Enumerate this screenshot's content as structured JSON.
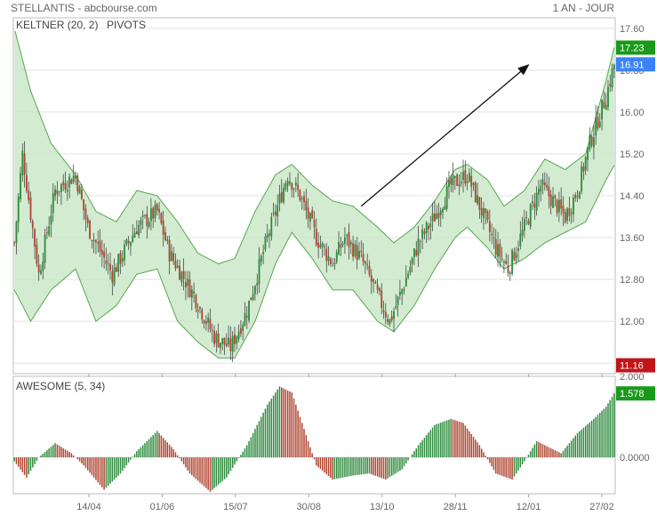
{
  "header": {
    "title": "STELLANTIS - abcbourse.com",
    "period": "1 AN - JOUR"
  },
  "colors": {
    "up": "#2e8b3e",
    "down": "#b0442f",
    "band_fill": "#cbe8c8",
    "band_line": "#55a84f",
    "badge_green": "#1a9a1a",
    "badge_blue": "#3b82f6",
    "badge_red": "#c0161a"
  },
  "chart_data": [
    {
      "type": "candlestick",
      "title": "",
      "indicators": [
        "KELTNER (20, 2)",
        "PIVOTS"
      ],
      "ylim": [
        11.0,
        17.8
      ],
      "yticks": [
        "17.60",
        "16.80",
        "16.00",
        "15.20",
        "14.40",
        "13.60",
        "12.80",
        "12.00",
        "11.20"
      ],
      "x_ticks": [
        "14/04",
        "01/06",
        "15/07",
        "30/08",
        "13/10",
        "28/11",
        "12/01",
        "27/02"
      ],
      "grid": true,
      "price_anchors": [
        {
          "x": 0,
          "close": 13.5
        },
        {
          "x": 4,
          "close": 15.2
        },
        {
          "x": 12,
          "close": 12.9
        },
        {
          "x": 20,
          "close": 14.5
        },
        {
          "x": 30,
          "close": 14.8
        },
        {
          "x": 36,
          "close": 13.8
        },
        {
          "x": 48,
          "close": 12.9
        },
        {
          "x": 60,
          "close": 13.8
        },
        {
          "x": 70,
          "close": 14.1
        },
        {
          "x": 76,
          "close": 13.3
        },
        {
          "x": 88,
          "close": 12.5
        },
        {
          "x": 98,
          "close": 11.7
        },
        {
          "x": 106,
          "close": 11.5
        },
        {
          "x": 114,
          "close": 12.2
        },
        {
          "x": 124,
          "close": 13.6
        },
        {
          "x": 134,
          "close": 14.8
        },
        {
          "x": 140,
          "close": 14.4
        },
        {
          "x": 148,
          "close": 13.6
        },
        {
          "x": 156,
          "close": 13.1
        },
        {
          "x": 162,
          "close": 13.6
        },
        {
          "x": 170,
          "close": 13.2
        },
        {
          "x": 178,
          "close": 12.5
        },
        {
          "x": 184,
          "close": 12.0
        },
        {
          "x": 190,
          "close": 12.6
        },
        {
          "x": 198,
          "close": 13.5
        },
        {
          "x": 206,
          "close": 14.0
        },
        {
          "x": 214,
          "close": 14.6
        },
        {
          "x": 222,
          "close": 14.8
        },
        {
          "x": 228,
          "close": 14.2
        },
        {
          "x": 236,
          "close": 13.4
        },
        {
          "x": 242,
          "close": 13.0
        },
        {
          "x": 250,
          "close": 13.8
        },
        {
          "x": 258,
          "close": 14.6
        },
        {
          "x": 264,
          "close": 14.3
        },
        {
          "x": 270,
          "close": 14.0
        },
        {
          "x": 276,
          "close": 14.5
        },
        {
          "x": 282,
          "close": 15.4
        },
        {
          "x": 290,
          "close": 16.3
        },
        {
          "x": 294,
          "close": 16.91
        }
      ],
      "keltner_anchors": [
        {
          "x": 0,
          "upper": 17.6,
          "lower": 12.6
        },
        {
          "x": 8,
          "upper": 16.4,
          "lower": 12.0
        },
        {
          "x": 18,
          "upper": 15.4,
          "lower": 12.6
        },
        {
          "x": 30,
          "upper": 14.8,
          "lower": 13.0
        },
        {
          "x": 40,
          "upper": 14.1,
          "lower": 12.0
        },
        {
          "x": 50,
          "upper": 13.9,
          "lower": 12.3
        },
        {
          "x": 60,
          "upper": 14.5,
          "lower": 12.9
        },
        {
          "x": 70,
          "upper": 14.4,
          "lower": 13.0
        },
        {
          "x": 80,
          "upper": 13.9,
          "lower": 12.0
        },
        {
          "x": 90,
          "upper": 13.3,
          "lower": 11.6
        },
        {
          "x": 100,
          "upper": 13.1,
          "lower": 11.3
        },
        {
          "x": 108,
          "upper": 13.2,
          "lower": 11.3
        },
        {
          "x": 118,
          "upper": 14.1,
          "lower": 12.0
        },
        {
          "x": 128,
          "upper": 14.8,
          "lower": 13.1
        },
        {
          "x": 136,
          "upper": 15.0,
          "lower": 13.7
        },
        {
          "x": 146,
          "upper": 14.6,
          "lower": 13.2
        },
        {
          "x": 156,
          "upper": 14.3,
          "lower": 12.6
        },
        {
          "x": 166,
          "upper": 14.2,
          "lower": 12.6
        },
        {
          "x": 178,
          "upper": 13.8,
          "lower": 12.0
        },
        {
          "x": 186,
          "upper": 13.5,
          "lower": 11.8
        },
        {
          "x": 196,
          "upper": 13.8,
          "lower": 12.3
        },
        {
          "x": 206,
          "upper": 14.3,
          "lower": 13.0
        },
        {
          "x": 216,
          "upper": 14.9,
          "lower": 13.6
        },
        {
          "x": 222,
          "upper": 15.0,
          "lower": 13.8
        },
        {
          "x": 232,
          "upper": 14.7,
          "lower": 13.4
        },
        {
          "x": 240,
          "upper": 14.2,
          "lower": 13.0
        },
        {
          "x": 250,
          "upper": 14.5,
          "lower": 13.2
        },
        {
          "x": 260,
          "upper": 15.1,
          "lower": 13.5
        },
        {
          "x": 270,
          "upper": 14.9,
          "lower": 13.7
        },
        {
          "x": 280,
          "upper": 15.2,
          "lower": 13.9
        },
        {
          "x": 290,
          "upper": 16.6,
          "lower": 14.7
        },
        {
          "x": 294,
          "upper": 17.23,
          "lower": 14.98
        }
      ],
      "trend_arrow": {
        "from": {
          "x": 170,
          "y": 14.2
        },
        "to": {
          "x": 252,
          "y": 16.9
        }
      },
      "last_values": [
        {
          "label": "17.23",
          "color_key": "badge_green",
          "value": 17.23
        },
        {
          "label": "16.91",
          "color_key": "badge_blue",
          "value": 16.91
        },
        {
          "label": "11.16",
          "color_key": "badge_red",
          "value": 11.16
        }
      ]
    },
    {
      "type": "bar",
      "title": "",
      "indicator": "AWESOME (5, 34)",
      "ylim": [
        -0.9,
        2.0
      ],
      "yticks": [
        "2.000",
        "0.0000"
      ],
      "last_value": "1.578",
      "ao_anchors": [
        {
          "x": 0,
          "v": -0.1
        },
        {
          "x": 6,
          "v": -0.5
        },
        {
          "x": 12,
          "v": 0.0
        },
        {
          "x": 20,
          "v": 0.35
        },
        {
          "x": 28,
          "v": 0.1
        },
        {
          "x": 34,
          "v": -0.2
        },
        {
          "x": 44,
          "v": -0.8
        },
        {
          "x": 52,
          "v": -0.4
        },
        {
          "x": 60,
          "v": 0.15
        },
        {
          "x": 70,
          "v": 0.65
        },
        {
          "x": 78,
          "v": 0.2
        },
        {
          "x": 86,
          "v": -0.4
        },
        {
          "x": 96,
          "v": -0.85
        },
        {
          "x": 104,
          "v": -0.5
        },
        {
          "x": 114,
          "v": 0.3
        },
        {
          "x": 124,
          "v": 1.3
        },
        {
          "x": 130,
          "v": 1.75
        },
        {
          "x": 136,
          "v": 1.6
        },
        {
          "x": 142,
          "v": 0.7
        },
        {
          "x": 148,
          "v": -0.2
        },
        {
          "x": 156,
          "v": -0.55
        },
        {
          "x": 166,
          "v": -0.45
        },
        {
          "x": 174,
          "v": -0.4
        },
        {
          "x": 182,
          "v": -0.55
        },
        {
          "x": 190,
          "v": -0.3
        },
        {
          "x": 198,
          "v": 0.3
        },
        {
          "x": 206,
          "v": 0.8
        },
        {
          "x": 214,
          "v": 0.95
        },
        {
          "x": 220,
          "v": 0.85
        },
        {
          "x": 228,
          "v": 0.3
        },
        {
          "x": 236,
          "v": -0.4
        },
        {
          "x": 244,
          "v": -0.55
        },
        {
          "x": 250,
          "v": -0.1
        },
        {
          "x": 256,
          "v": 0.4
        },
        {
          "x": 262,
          "v": 0.25
        },
        {
          "x": 268,
          "v": 0.1
        },
        {
          "x": 276,
          "v": 0.6
        },
        {
          "x": 284,
          "v": 0.95
        },
        {
          "x": 290,
          "v": 1.25
        },
        {
          "x": 294,
          "v": 1.578
        }
      ]
    }
  ]
}
